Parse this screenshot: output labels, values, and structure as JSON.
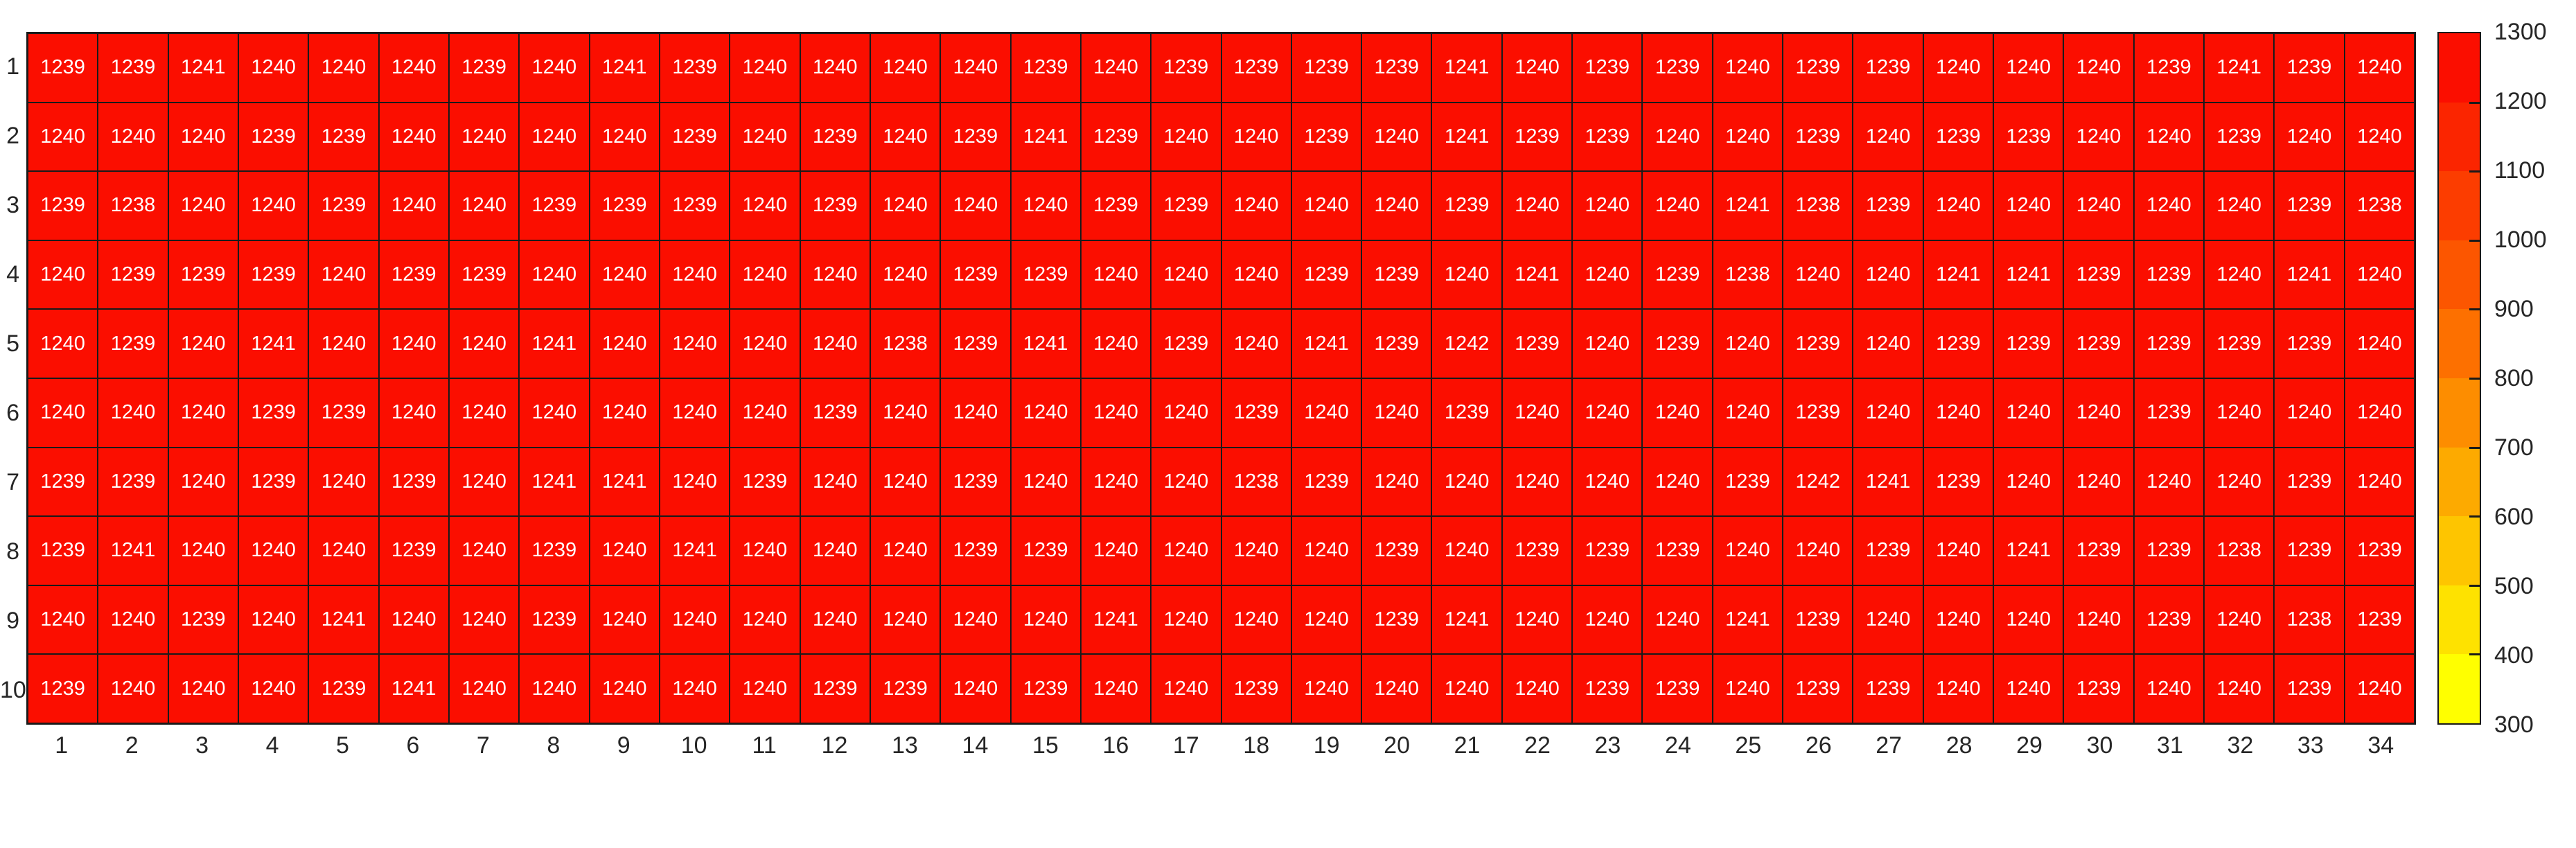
{
  "figure": {
    "background": "#ffffff",
    "grid_line_color": "#1a1a1a",
    "cell_color": "#fb0e00",
    "cell_text_color": "#ffffff",
    "axis_label_color": "#262626"
  },
  "chart_data": {
    "type": "heatmap",
    "title": "",
    "xlabel": "",
    "ylabel": "",
    "grid": true,
    "legend_position": "colorbar-right",
    "x_tick_labels": [
      "1",
      "2",
      "3",
      "4",
      "5",
      "6",
      "7",
      "8",
      "9",
      "10",
      "11",
      "12",
      "13",
      "14",
      "15",
      "16",
      "17",
      "18",
      "19",
      "20",
      "21",
      "22",
      "23",
      "24",
      "25",
      "26",
      "27",
      "28",
      "29",
      "30",
      "31",
      "32",
      "33",
      "34"
    ],
    "y_tick_labels": [
      "1",
      "2",
      "3",
      "4",
      "5",
      "6",
      "7",
      "8",
      "9",
      "10"
    ],
    "values": [
      [
        1239,
        1239,
        1241,
        1240,
        1240,
        1240,
        1239,
        1240,
        1241,
        1239,
        1240,
        1240,
        1240,
        1240,
        1239,
        1240,
        1239,
        1239,
        1239,
        1239,
        1241,
        1240,
        1239,
        1239,
        1240,
        1239,
        1239,
        1240,
        1240,
        1240,
        1239,
        1241,
        1239,
        1240
      ],
      [
        1240,
        1240,
        1240,
        1239,
        1239,
        1240,
        1240,
        1240,
        1240,
        1239,
        1240,
        1239,
        1240,
        1239,
        1241,
        1239,
        1240,
        1240,
        1239,
        1240,
        1241,
        1239,
        1239,
        1240,
        1240,
        1239,
        1240,
        1239,
        1239,
        1240,
        1240,
        1239,
        1240,
        1240
      ],
      [
        1239,
        1238,
        1240,
        1240,
        1239,
        1240,
        1240,
        1239,
        1239,
        1239,
        1240,
        1239,
        1240,
        1240,
        1240,
        1239,
        1239,
        1240,
        1240,
        1240,
        1239,
        1240,
        1240,
        1240,
        1241,
        1238,
        1239,
        1240,
        1240,
        1240,
        1240,
        1240,
        1239,
        1238
      ],
      [
        1240,
        1239,
        1239,
        1239,
        1240,
        1239,
        1239,
        1240,
        1240,
        1240,
        1240,
        1240,
        1240,
        1239,
        1239,
        1240,
        1240,
        1240,
        1239,
        1239,
        1240,
        1241,
        1240,
        1239,
        1238,
        1240,
        1240,
        1241,
        1241,
        1239,
        1239,
        1240,
        1241,
        1240
      ],
      [
        1240,
        1239,
        1240,
        1241,
        1240,
        1240,
        1240,
        1241,
        1240,
        1240,
        1240,
        1240,
        1238,
        1239,
        1241,
        1240,
        1239,
        1240,
        1241,
        1239,
        1242,
        1239,
        1240,
        1239,
        1240,
        1239,
        1240,
        1239,
        1239,
        1239,
        1239,
        1239,
        1239,
        1240
      ],
      [
        1240,
        1240,
        1240,
        1239,
        1239,
        1240,
        1240,
        1240,
        1240,
        1240,
        1240,
        1239,
        1240,
        1240,
        1240,
        1240,
        1240,
        1239,
        1240,
        1240,
        1239,
        1240,
        1240,
        1240,
        1240,
        1239,
        1240,
        1240,
        1240,
        1240,
        1239,
        1240,
        1240,
        1240
      ],
      [
        1239,
        1239,
        1240,
        1239,
        1240,
        1239,
        1240,
        1241,
        1241,
        1240,
        1239,
        1240,
        1240,
        1239,
        1240,
        1240,
        1240,
        1238,
        1239,
        1240,
        1240,
        1240,
        1240,
        1240,
        1239,
        1242,
        1241,
        1239,
        1240,
        1240,
        1240,
        1240,
        1239,
        1240
      ],
      [
        1239,
        1241,
        1240,
        1240,
        1240,
        1239,
        1240,
        1239,
        1240,
        1241,
        1240,
        1240,
        1240,
        1239,
        1239,
        1240,
        1240,
        1240,
        1240,
        1239,
        1240,
        1239,
        1239,
        1239,
        1240,
        1240,
        1239,
        1240,
        1241,
        1239,
        1239,
        1238,
        1239,
        1239
      ],
      [
        1240,
        1240,
        1239,
        1240,
        1241,
        1240,
        1240,
        1239,
        1240,
        1240,
        1240,
        1240,
        1240,
        1240,
        1240,
        1241,
        1240,
        1240,
        1240,
        1239,
        1241,
        1240,
        1240,
        1240,
        1241,
        1239,
        1240,
        1240,
        1240,
        1240,
        1239,
        1240,
        1238,
        1239
      ],
      [
        1239,
        1240,
        1240,
        1240,
        1239,
        1241,
        1240,
        1240,
        1240,
        1240,
        1240,
        1239,
        1239,
        1240,
        1239,
        1240,
        1240,
        1239,
        1240,
        1240,
        1240,
        1240,
        1239,
        1239,
        1240,
        1239,
        1239,
        1240,
        1240,
        1239,
        1240,
        1240,
        1239,
        1240
      ]
    ],
    "value_range_observed": [
      1238,
      1242
    ],
    "colorbar": {
      "min": 300,
      "max": 1300,
      "tick_labels": [
        "1300",
        "1200",
        "1100",
        "1000",
        "900",
        "800",
        "700",
        "600",
        "500",
        "400",
        "300"
      ],
      "band_colors_top_to_bottom": [
        "#fb0e00",
        "#fb2500",
        "#fc3d00",
        "#fc5600",
        "#fd7000",
        "#fd8d00",
        "#fdaa00",
        "#fec500",
        "#fee200",
        "#ffff00"
      ]
    }
  }
}
